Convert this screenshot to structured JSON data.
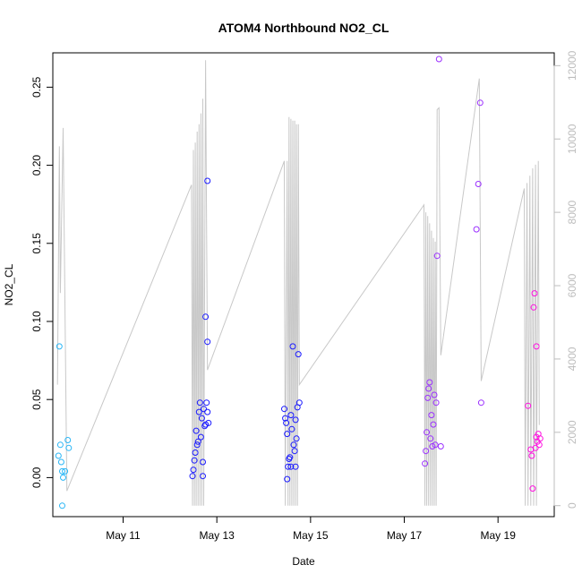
{
  "chart_data": {
    "type": "scatter",
    "title": "ATOM4 Northbound NO2_CL",
    "xlabel": "Date",
    "ylabel": "NO2_CL",
    "x_tick_labels": [
      "May 11",
      "May 13",
      "May 15",
      "May 17",
      "May 19"
    ],
    "x_tick_values": [
      11,
      13,
      15,
      17,
      19
    ],
    "xlim": [
      9.5,
      20.2
    ],
    "ylim": [
      -0.025,
      0.272
    ],
    "y_ticks": [
      "0.00",
      "0.05",
      "0.10",
      "0.15",
      "0.20",
      "0.25"
    ],
    "y2_ticks": [
      "0",
      "2000",
      "4000",
      "6000",
      "8000",
      "10000",
      "12000"
    ],
    "y2lim": [
      -300,
      12350
    ],
    "grid": false,
    "line_color": "#c8c8c8",
    "colors": {
      "early": "#29b6f6",
      "mid": "#1a1aff",
      "late": "#9b30ff",
      "last": "#ff10e0"
    },
    "points": [
      {
        "x": 9.64,
        "y": 0.084
      },
      {
        "x": 9.62,
        "y": 0.014
      },
      {
        "x": 9.66,
        "y": 0.021
      },
      {
        "x": 9.68,
        "y": 0.01
      },
      {
        "x": 9.7,
        "y": 0.004
      },
      {
        "x": 9.72,
        "y": 0.0
      },
      {
        "x": 9.76,
        "y": 0.004
      },
      {
        "x": 9.82,
        "y": 0.024
      },
      {
        "x": 9.84,
        "y": 0.019
      },
      {
        "x": 9.7,
        "y": -0.018
      },
      {
        "x": 12.48,
        "y": 0.001
      },
      {
        "x": 12.5,
        "y": 0.005
      },
      {
        "x": 12.52,
        "y": 0.011
      },
      {
        "x": 12.54,
        "y": 0.016
      },
      {
        "x": 12.56,
        "y": 0.03
      },
      {
        "x": 12.58,
        "y": 0.021
      },
      {
        "x": 12.6,
        "y": 0.023
      },
      {
        "x": 12.62,
        "y": 0.042
      },
      {
        "x": 12.64,
        "y": 0.048
      },
      {
        "x": 12.66,
        "y": 0.026
      },
      {
        "x": 12.68,
        "y": 0.038
      },
      {
        "x": 12.7,
        "y": 0.01
      },
      {
        "x": 12.72,
        "y": 0.044
      },
      {
        "x": 12.74,
        "y": 0.033
      },
      {
        "x": 12.7,
        "y": 0.001
      },
      {
        "x": 12.76,
        "y": 0.034
      },
      {
        "x": 12.78,
        "y": 0.048
      },
      {
        "x": 12.76,
        "y": 0.103
      },
      {
        "x": 12.8,
        "y": 0.087
      },
      {
        "x": 12.8,
        "y": 0.19
      },
      {
        "x": 12.8,
        "y": 0.042
      },
      {
        "x": 12.82,
        "y": 0.035
      },
      {
        "x": 14.44,
        "y": 0.044
      },
      {
        "x": 14.46,
        "y": 0.038
      },
      {
        "x": 14.48,
        "y": 0.035
      },
      {
        "x": 14.5,
        "y": 0.028
      },
      {
        "x": 14.52,
        "y": 0.007
      },
      {
        "x": 14.54,
        "y": 0.012
      },
      {
        "x": 14.56,
        "y": 0.013
      },
      {
        "x": 14.58,
        "y": 0.04
      },
      {
        "x": 14.6,
        "y": 0.031
      },
      {
        "x": 14.62,
        "y": 0.084
      },
      {
        "x": 14.64,
        "y": 0.021
      },
      {
        "x": 14.66,
        "y": 0.017
      },
      {
        "x": 14.68,
        "y": 0.037
      },
      {
        "x": 14.7,
        "y": 0.025
      },
      {
        "x": 14.72,
        "y": 0.045
      },
      {
        "x": 14.74,
        "y": 0.079
      },
      {
        "x": 14.76,
        "y": 0.048
      },
      {
        "x": 14.5,
        "y": -0.001
      },
      {
        "x": 14.58,
        "y": 0.007
      },
      {
        "x": 14.68,
        "y": 0.007
      },
      {
        "x": 17.44,
        "y": 0.009
      },
      {
        "x": 17.46,
        "y": 0.017
      },
      {
        "x": 17.48,
        "y": 0.029
      },
      {
        "x": 17.5,
        "y": 0.051
      },
      {
        "x": 17.52,
        "y": 0.057
      },
      {
        "x": 17.54,
        "y": 0.061
      },
      {
        "x": 17.56,
        "y": 0.025
      },
      {
        "x": 17.58,
        "y": 0.04
      },
      {
        "x": 17.6,
        "y": 0.02
      },
      {
        "x": 17.62,
        "y": 0.034
      },
      {
        "x": 17.64,
        "y": 0.053
      },
      {
        "x": 17.66,
        "y": 0.021
      },
      {
        "x": 17.68,
        "y": 0.048
      },
      {
        "x": 17.7,
        "y": 0.142
      },
      {
        "x": 17.74,
        "y": 0.268
      },
      {
        "x": 17.78,
        "y": 0.02
      },
      {
        "x": 18.54,
        "y": 0.159
      },
      {
        "x": 18.58,
        "y": 0.188
      },
      {
        "x": 18.62,
        "y": 0.24
      },
      {
        "x": 18.64,
        "y": 0.048
      },
      {
        "x": 19.64,
        "y": 0.046
      },
      {
        "x": 19.7,
        "y": 0.018
      },
      {
        "x": 19.72,
        "y": 0.014
      },
      {
        "x": 19.74,
        "y": -0.007
      },
      {
        "x": 19.76,
        "y": 0.109
      },
      {
        "x": 19.78,
        "y": 0.118
      },
      {
        "x": 19.8,
        "y": 0.019
      },
      {
        "x": 19.82,
        "y": 0.026
      },
      {
        "x": 19.82,
        "y": 0.084
      },
      {
        "x": 19.84,
        "y": 0.023
      },
      {
        "x": 19.86,
        "y": 0.028
      },
      {
        "x": 19.88,
        "y": 0.021
      },
      {
        "x": 19.9,
        "y": 0.025
      }
    ],
    "line_series": [
      [
        9.6,
        3300
      ],
      [
        9.64,
        9800
      ],
      [
        9.66,
        5800
      ],
      [
        9.72,
        10300
      ],
      [
        9.8,
        400
      ],
      [
        12.46,
        8750
      ],
      [
        12.48,
        0
      ],
      [
        12.5,
        9700
      ],
      [
        12.52,
        0
      ],
      [
        12.54,
        9900
      ],
      [
        12.56,
        0
      ],
      [
        12.58,
        10200
      ],
      [
        12.6,
        0
      ],
      [
        12.62,
        10400
      ],
      [
        12.64,
        0
      ],
      [
        12.66,
        10700
      ],
      [
        12.68,
        0
      ],
      [
        12.7,
        11100
      ],
      [
        12.72,
        0
      ],
      [
        12.76,
        12150
      ],
      [
        12.8,
        3700
      ],
      [
        14.44,
        9400
      ],
      [
        14.46,
        0
      ],
      [
        14.5,
        9400
      ],
      [
        14.52,
        0
      ],
      [
        14.54,
        10600
      ],
      [
        14.56,
        0
      ],
      [
        14.58,
        10550
      ],
      [
        14.6,
        0
      ],
      [
        14.62,
        10500
      ],
      [
        14.64,
        0
      ],
      [
        14.66,
        10500
      ],
      [
        14.68,
        0
      ],
      [
        14.7,
        10400
      ],
      [
        14.72,
        0
      ],
      [
        14.74,
        10400
      ],
      [
        14.76,
        3300
      ],
      [
        17.42,
        8200
      ],
      [
        17.44,
        0
      ],
      [
        17.46,
        8000
      ],
      [
        17.48,
        0
      ],
      [
        17.5,
        7900
      ],
      [
        17.52,
        0
      ],
      [
        17.54,
        7700
      ],
      [
        17.56,
        0
      ],
      [
        17.58,
        7500
      ],
      [
        17.6,
        0
      ],
      [
        17.62,
        7300
      ],
      [
        17.64,
        0
      ],
      [
        17.66,
        7200
      ],
      [
        17.68,
        0
      ],
      [
        17.7,
        10800
      ],
      [
        17.74,
        10850
      ],
      [
        17.78,
        4100
      ],
      [
        18.6,
        11650
      ],
      [
        18.64,
        3400
      ],
      [
        19.56,
        8650
      ],
      [
        19.58,
        0
      ],
      [
        19.62,
        8800
      ],
      [
        19.64,
        0
      ],
      [
        19.68,
        9000
      ],
      [
        19.7,
        0
      ],
      [
        19.74,
        9200
      ],
      [
        19.76,
        0
      ],
      [
        19.8,
        9300
      ],
      [
        19.82,
        0
      ],
      [
        19.86,
        9400
      ],
      [
        19.88,
        2200
      ]
    ]
  }
}
